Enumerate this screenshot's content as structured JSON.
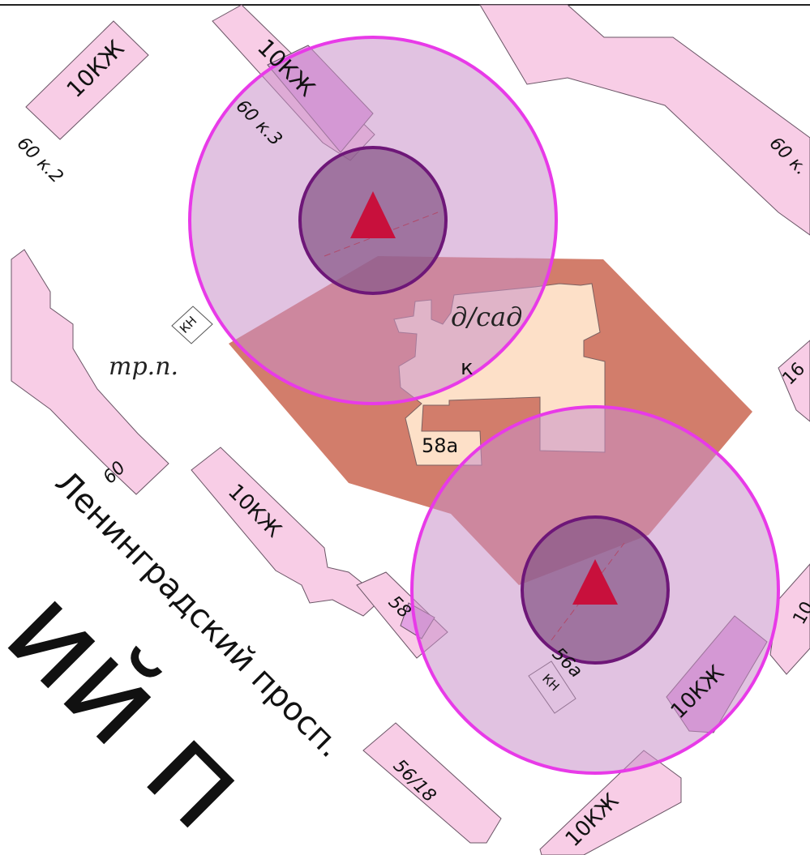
{
  "map": {
    "street_label": "Ленинградский просп.",
    "large_fragment_label": "ий п",
    "transformer_label": "тр.п.",
    "kindergarten_label": "д/сад",
    "zone_letter": "к",
    "building_labels": {
      "b1": "10КЖ",
      "b2": "10КЖ",
      "b3": "60 к.3",
      "b4": "60 к.2",
      "b5": "60 к.",
      "b6": "КН",
      "b7": "60",
      "b8": "10КЖ",
      "b9": "58",
      "b10": "58а",
      "b11": "16",
      "b12": "56а",
      "b13": "КН",
      "b14": "10КЖ",
      "b15": "10",
      "b16": "56/18",
      "b17": "10КЖ"
    },
    "colors": {
      "building_fill": "#f8cde6",
      "building_dark_fill": "#e3a2e3",
      "kindergarten_fill": "#fde0c8",
      "plot_fill": "#c8604a",
      "outer_ring_stroke": "#e83ae8",
      "outer_ring_fill": "#c890c8",
      "inner_ring_stroke": "#6e1778",
      "inner_ring_fill": "#8a5a8a",
      "marker": "#c8103c"
    }
  }
}
